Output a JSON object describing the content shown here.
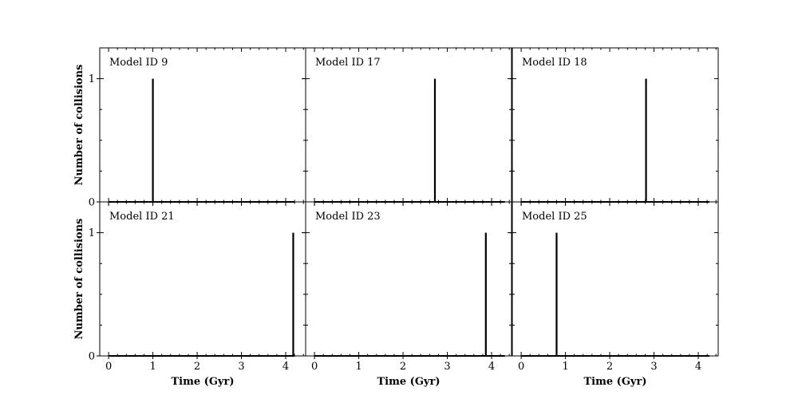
{
  "figure": {
    "ylabel": "Number of collisions",
    "xlabel": "Time (Gyr)"
  },
  "chart_data": [
    {
      "type": "line",
      "title": "Model ID 9",
      "x_range": [
        0,
        4.2
      ],
      "spikes": [
        {
          "x": 1.0,
          "y": 1
        }
      ],
      "xlim": [
        -0.2,
        4.45
      ],
      "ylim": [
        0,
        1.25
      ],
      "xticks": [
        0,
        1,
        2,
        3,
        4
      ],
      "yticks": [
        0,
        1
      ],
      "xlabel": "",
      "ylabel": "Number of collisions"
    },
    {
      "type": "line",
      "title": "Model ID 17",
      "x_range": [
        0,
        4.3
      ],
      "spikes": [
        {
          "x": 2.72,
          "y": 1
        }
      ],
      "xlim": [
        -0.2,
        4.45
      ],
      "ylim": [
        0,
        1.25
      ],
      "xticks": [
        0,
        1,
        2,
        3,
        4
      ],
      "yticks": [
        0,
        1
      ],
      "xlabel": "",
      "ylabel": ""
    },
    {
      "type": "line",
      "title": "Model ID 18",
      "x_range": [
        0,
        4.25
      ],
      "spikes": [
        {
          "x": 2.82,
          "y": 1
        }
      ],
      "xlim": [
        -0.2,
        4.45
      ],
      "ylim": [
        0,
        1.25
      ],
      "xticks": [
        0,
        1,
        2,
        3,
        4
      ],
      "yticks": [
        0,
        1
      ],
      "xlabel": "",
      "ylabel": ""
    },
    {
      "type": "line",
      "title": "Model ID 21",
      "x_range": [
        0,
        4.2
      ],
      "spikes": [
        {
          "x": 4.17,
          "y": 1
        }
      ],
      "xlim": [
        -0.2,
        4.45
      ],
      "ylim": [
        0,
        1.25
      ],
      "xticks": [
        0,
        1,
        2,
        3,
        4
      ],
      "yticks": [
        0,
        1
      ],
      "xlabel": "Time (Gyr)",
      "ylabel": "Number of collisions"
    },
    {
      "type": "line",
      "title": "Model ID 23",
      "x_range": [
        0,
        4.3
      ],
      "spikes": [
        {
          "x": 3.87,
          "y": 1
        }
      ],
      "xlim": [
        -0.2,
        4.45
      ],
      "ylim": [
        0,
        1.25
      ],
      "xticks": [
        0,
        1,
        2,
        3,
        4
      ],
      "yticks": [
        0,
        1
      ],
      "xlabel": "Time (Gyr)",
      "ylabel": ""
    },
    {
      "type": "line",
      "title": "Model ID 25",
      "x_range": [
        0,
        4.25
      ],
      "spikes": [
        {
          "x": 0.8,
          "y": 1
        }
      ],
      "xlim": [
        -0.2,
        4.45
      ],
      "ylim": [
        0,
        1.25
      ],
      "xticks": [
        0,
        1,
        2,
        3,
        4
      ],
      "yticks": [
        0,
        1
      ],
      "xlabel": "Time (Gyr)",
      "ylabel": ""
    }
  ]
}
